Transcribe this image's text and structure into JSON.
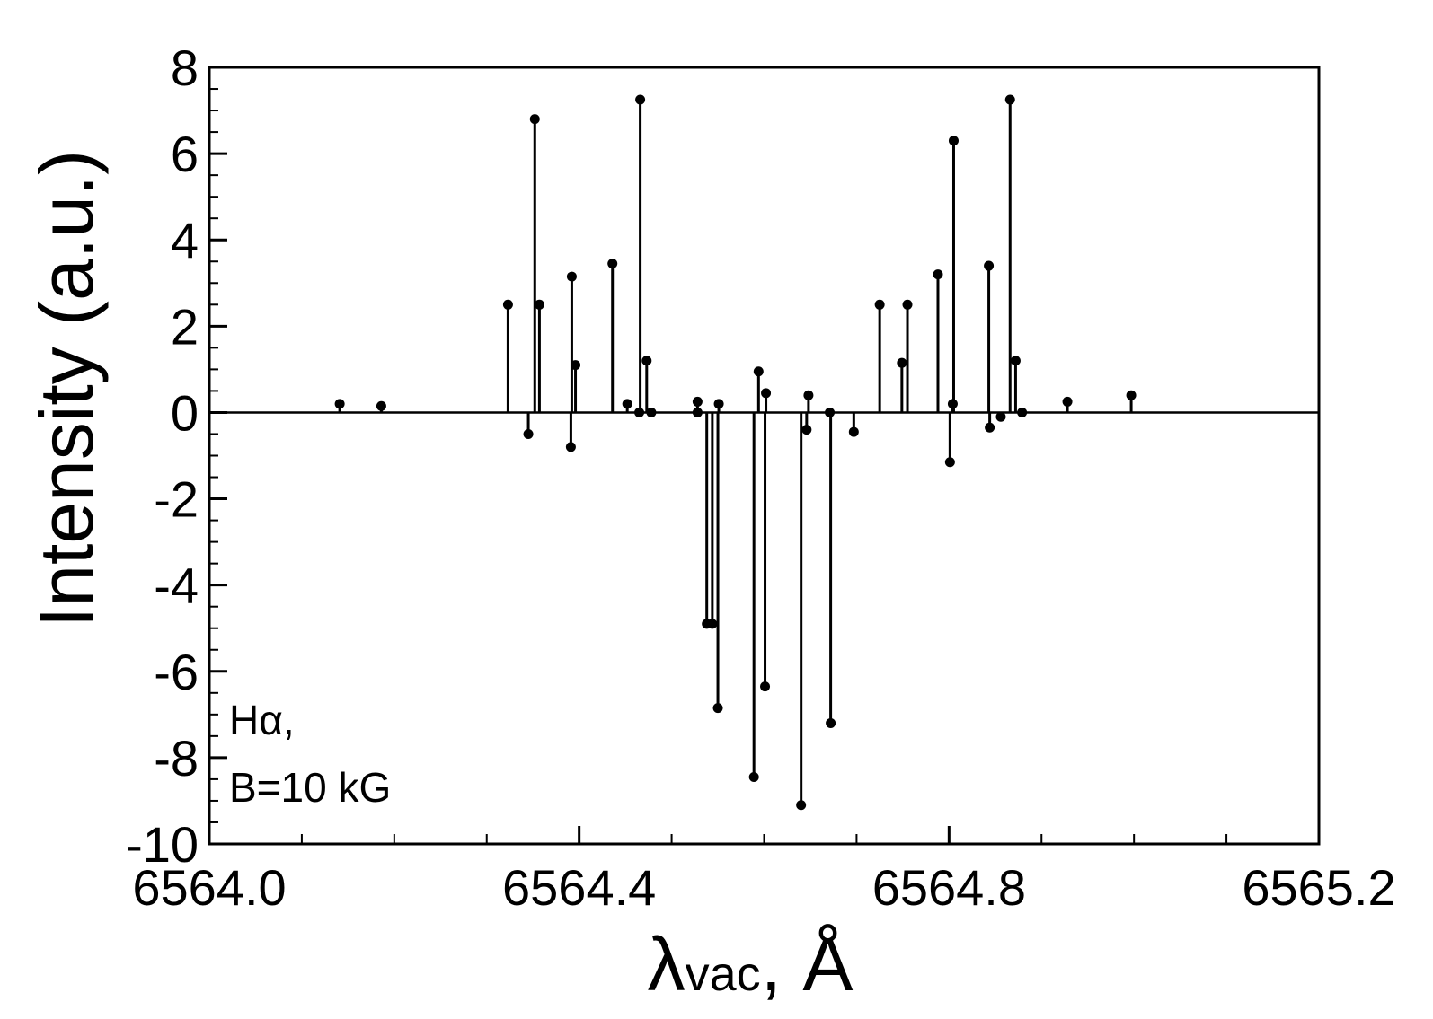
{
  "chart_data": {
    "type": "scatter",
    "style": "stem",
    "title": "",
    "xlabel_main": "λ",
    "xlabel_sub": "vac",
    "xlabel_unit": ", Å",
    "ylabel": "Intensity (a.u.)",
    "xlim": [
      6564.0,
      6565.2
    ],
    "ylim": [
      -10,
      8
    ],
    "xticks": [
      6564.0,
      6564.4,
      6564.8,
      6565.2
    ],
    "xtick_labels": [
      "6564.0",
      "6564.4",
      "6564.8",
      "6565.2"
    ],
    "yticks": [
      -10,
      -8,
      -6,
      -4,
      -2,
      0,
      2,
      4,
      6,
      8
    ],
    "ytick_labels": [
      "-10",
      "-8",
      "-6",
      "-4",
      "-2",
      "0",
      "2",
      "4",
      "6",
      "8"
    ],
    "grid": false,
    "annotation_line1": "Hα,",
    "annotation_line2": "B=10 kG",
    "series": [
      {
        "points": [
          {
            "x": 6564.141,
            "y": 0.2
          },
          {
            "x": 6564.186,
            "y": 0.15
          },
          {
            "x": 6564.323,
            "y": 2.5
          },
          {
            "x": 6564.345,
            "y": -0.5
          },
          {
            "x": 6564.352,
            "y": 6.8
          },
          {
            "x": 6564.357,
            "y": 2.5
          },
          {
            "x": 6564.391,
            "y": -0.8
          },
          {
            "x": 6564.392,
            "y": 3.15
          },
          {
            "x": 6564.396,
            "y": 1.1
          },
          {
            "x": 6564.436,
            "y": 3.45
          },
          {
            "x": 6564.452,
            "y": 0.2
          },
          {
            "x": 6564.465,
            "y": 0.0
          },
          {
            "x": 6564.466,
            "y": 7.25
          },
          {
            "x": 6564.473,
            "y": 1.2
          },
          {
            "x": 6564.478,
            "y": 0.0
          },
          {
            "x": 6564.528,
            "y": 0.0
          },
          {
            "x": 6564.528,
            "y": 0.25
          },
          {
            "x": 6564.538,
            "y": -4.9
          },
          {
            "x": 6564.544,
            "y": -4.9
          },
          {
            "x": 6564.55,
            "y": -6.85
          },
          {
            "x": 6564.551,
            "y": 0.2
          },
          {
            "x": 6564.589,
            "y": -8.45
          },
          {
            "x": 6564.594,
            "y": 0.95
          },
          {
            "x": 6564.601,
            "y": -6.35
          },
          {
            "x": 6564.602,
            "y": 0.45
          },
          {
            "x": 6564.64,
            "y": -9.1
          },
          {
            "x": 6564.646,
            "y": -0.4
          },
          {
            "x": 6564.648,
            "y": 0.4
          },
          {
            "x": 6564.671,
            "y": 0.0
          },
          {
            "x": 6564.672,
            "y": -7.2
          },
          {
            "x": 6564.697,
            "y": -0.45
          },
          {
            "x": 6564.725,
            "y": 2.5
          },
          {
            "x": 6564.749,
            "y": 1.15
          },
          {
            "x": 6564.755,
            "y": 2.5
          },
          {
            "x": 6564.788,
            "y": 3.2
          },
          {
            "x": 6564.801,
            "y": -1.15
          },
          {
            "x": 6564.804,
            "y": 0.2
          },
          {
            "x": 6564.805,
            "y": 6.3
          },
          {
            "x": 6564.843,
            "y": 3.4
          },
          {
            "x": 6564.844,
            "y": -0.35
          },
          {
            "x": 6564.856,
            "y": -0.1
          },
          {
            "x": 6564.866,
            "y": 7.25
          },
          {
            "x": 6564.872,
            "y": 1.2
          },
          {
            "x": 6564.879,
            "y": 0.0
          },
          {
            "x": 6564.928,
            "y": 0.25
          },
          {
            "x": 6564.997,
            "y": 0.4
          }
        ]
      }
    ]
  }
}
